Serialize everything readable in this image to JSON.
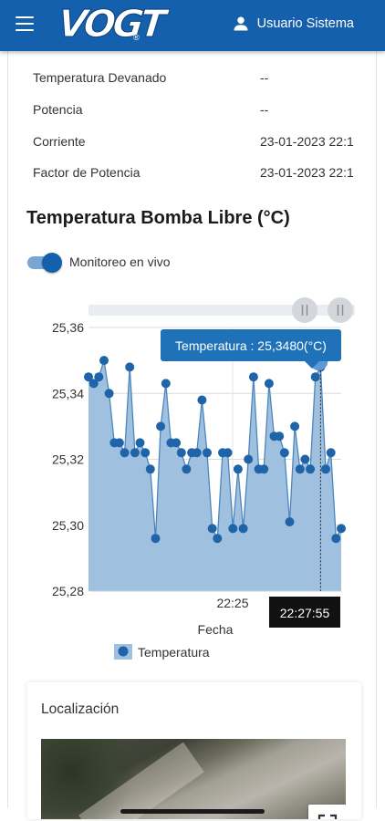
{
  "header": {
    "brand": "VOGT",
    "brand_mark": "®",
    "user_name": "Usuario Sistema",
    "menu_icon": "hamburger-menu-icon",
    "user_icon": "account-icon",
    "color": "#1560ad"
  },
  "properties": [
    {
      "label": "Temperatura Devanado",
      "value": "--"
    },
    {
      "label": "Potencia",
      "value": "--"
    },
    {
      "label": "Corriente",
      "value": "23-01-2023 22:1"
    },
    {
      "label": "Factor de Potencia",
      "value": "23-01-2023 22:1"
    }
  ],
  "chart_section": {
    "title": "Temperatura Bomba Libre (°C)",
    "live_toggle": {
      "label": "Monitoreo en vivo",
      "on": true
    }
  },
  "chart_data": {
    "type": "area",
    "title": "",
    "xlabel": "Fecha",
    "ylabel": "",
    "ylim": [
      25.28,
      25.36
    ],
    "y_ticks": [
      "25,36",
      "25,34",
      "25,32",
      "25,30",
      "25,28"
    ],
    "x_ticks": [
      "22:25"
    ],
    "legend": [
      "Temperatura"
    ],
    "legend_position": "bottom",
    "grid": true,
    "zoom_slider": {
      "start": 0.0,
      "end": 1.0
    },
    "series": [
      {
        "name": "Temperatura",
        "color": "#1f64a8",
        "fill": "#9fc1df",
        "values": [
          25.345,
          25.343,
          25.345,
          25.35,
          25.34,
          25.325,
          25.325,
          25.322,
          25.348,
          25.322,
          25.325,
          25.322,
          25.317,
          25.296,
          25.33,
          25.343,
          25.325,
          25.325,
          25.322,
          25.317,
          25.322,
          25.322,
          25.338,
          25.322,
          25.299,
          25.296,
          25.322,
          25.322,
          25.299,
          25.317,
          25.299,
          25.32,
          25.345,
          25.317,
          25.317,
          25.343,
          25.327,
          25.327,
          25.322,
          25.301,
          25.33,
          25.317,
          25.32,
          25.317,
          25.345,
          25.348,
          25.317,
          25.322,
          25.296,
          25.299
        ]
      }
    ],
    "tooltip": {
      "text": "Temperatura : 25,3480(°C)",
      "time": "22:27:55",
      "point_index": 45
    }
  },
  "location_card": {
    "title": "Localización",
    "fullscreen_icon": "fullscreen-icon"
  }
}
